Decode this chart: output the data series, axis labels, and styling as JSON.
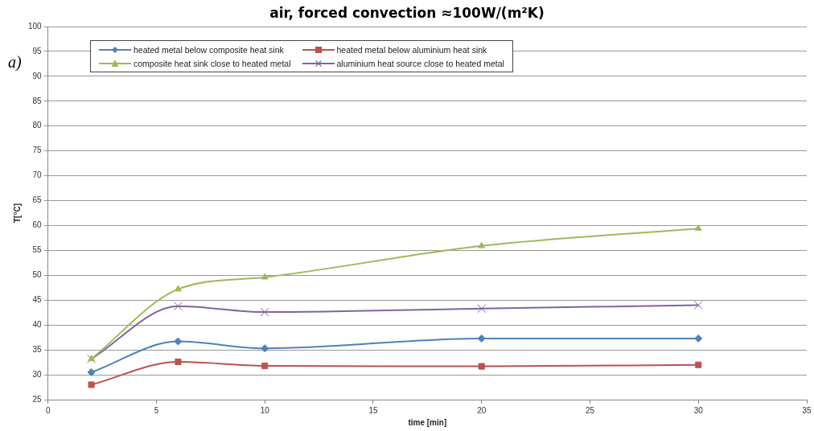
{
  "chart_data": {
    "type": "line",
    "title": "air, forced convection ≈100W/(m²K)",
    "xlabel": "time [min]",
    "ylabel": "T[°C]",
    "annotations": [
      "a)"
    ],
    "x": [
      2,
      6,
      10,
      20,
      30
    ],
    "series": [
      {
        "name": "heated metal below composite heat sink",
        "color": "#4f81bd",
        "marker": "diamond",
        "values": [
          30.5,
          36.7,
          35.3,
          37.3,
          37.3
        ]
      },
      {
        "name": "heated metal below aluminium heat sink",
        "color": "#c0504d",
        "marker": "square",
        "values": [
          28.0,
          32.6,
          31.8,
          31.7,
          32.0
        ]
      },
      {
        "name": "composite heat sink close to heated metal",
        "color": "#9bbb59",
        "marker": "triangle",
        "values": [
          33.2,
          47.2,
          49.6,
          55.9,
          59.4
        ]
      },
      {
        "name": "aluminium heat source close to heated metal",
        "color": "#8064a2",
        "marker": "cross",
        "values": [
          33.2,
          43.8,
          42.6,
          43.3,
          44.0
        ]
      }
    ],
    "xlim": [
      0,
      35
    ],
    "xticks": [
      0,
      5,
      10,
      15,
      20,
      25,
      30,
      35
    ],
    "ylim": [
      25,
      100
    ],
    "yticks": [
      25,
      30,
      35,
      40,
      45,
      50,
      55,
      60,
      65,
      70,
      75,
      80,
      85,
      90,
      95,
      100
    ],
    "grid": "y",
    "legend": "top left"
  }
}
